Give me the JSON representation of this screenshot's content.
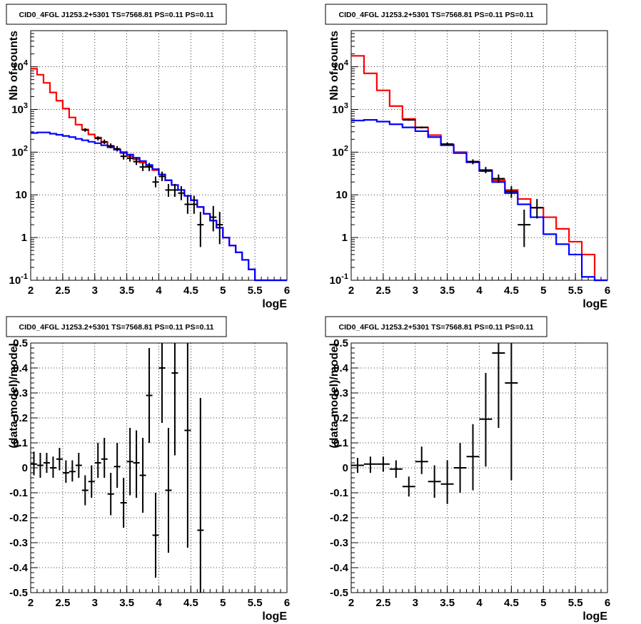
{
  "chart_data": [
    {
      "type": "histogram",
      "title": "CID0_4FGL J1253.2+5301 TS=7568.81 PS=0.11 PS=0.11",
      "xlabel": "logE",
      "ylabel": "Nb of counts",
      "xlim": [
        2,
        6
      ],
      "ylim": [
        0.1,
        70000
      ],
      "yscale": "log",
      "grid": true,
      "xticks": [
        "2",
        "2.5",
        "3",
        "3.5",
        "4",
        "4.5",
        "5",
        "5.5",
        "6"
      ],
      "yticks": [
        {
          "value": 0.1,
          "label": "10",
          "exp": "-1"
        },
        {
          "value": 1,
          "label": "1",
          "exp": ""
        },
        {
          "value": 10,
          "label": "10",
          "exp": ""
        },
        {
          "value": 100,
          "label": "10",
          "exp": "2"
        },
        {
          "value": 1000,
          "label": "10",
          "exp": "3"
        },
        {
          "value": 10000,
          "label": "10",
          "exp": "4"
        }
      ],
      "bin_edges": [
        2.0,
        2.1,
        2.2,
        2.3,
        2.4,
        2.5,
        2.6,
        2.7,
        2.8,
        2.9,
        3.0,
        3.1,
        3.2,
        3.3,
        3.4,
        3.5,
        3.6,
        3.7,
        3.8,
        3.9,
        4.0,
        4.1,
        4.2,
        4.3,
        4.4,
        4.5,
        4.6,
        4.7,
        4.8,
        4.9,
        5.0,
        5.1,
        5.2,
        5.3,
        5.4,
        5.5,
        5.6,
        5.7,
        5.8,
        5.9,
        6.0
      ],
      "series": [
        {
          "color": "#ff0000",
          "values": [
            9000,
            6500,
            4200,
            2500,
            1600,
            1050,
            650,
            440,
            340,
            260,
            220,
            170,
            140,
            115,
            95,
            80,
            68,
            57,
            47,
            38,
            30,
            22,
            17,
            13,
            9.5,
            7.5,
            5.2,
            3.6,
            2.5,
            1.7,
            1.0,
            0.65,
            0.45,
            0.3,
            0.18,
            0.1,
            0.1,
            0.1,
            0.1,
            0.1
          ]
        },
        {
          "color": "#0000ff",
          "values": [
            280,
            290,
            290,
            270,
            255,
            240,
            225,
            205,
            190,
            175,
            162,
            145,
            130,
            115,
            100,
            88,
            74,
            62,
            50,
            40,
            30,
            22,
            17,
            13,
            9.5,
            7.5,
            5.2,
            3.6,
            2.5,
            1.7,
            1.0,
            0.65,
            0.45,
            0.3,
            0.18,
            0.1,
            0.1,
            0.1,
            0.1,
            0.1
          ]
        }
      ],
      "points": [
        {
          "x": 2.85,
          "y": 330,
          "lo": 300,
          "hi": 365
        },
        {
          "x": 3.05,
          "y": 210,
          "lo": 188,
          "hi": 235
        },
        {
          "x": 3.15,
          "y": 175,
          "lo": 155,
          "hi": 198
        },
        {
          "x": 3.25,
          "y": 140,
          "lo": 123,
          "hi": 160
        },
        {
          "x": 3.35,
          "y": 120,
          "lo": 104,
          "hi": 139
        },
        {
          "x": 3.45,
          "y": 80,
          "lo": 67,
          "hi": 95
        },
        {
          "x": 3.55,
          "y": 72,
          "lo": 60,
          "hi": 86
        },
        {
          "x": 3.65,
          "y": 60,
          "lo": 50,
          "hi": 73
        },
        {
          "x": 3.75,
          "y": 45,
          "lo": 36,
          "hi": 56
        },
        {
          "x": 3.85,
          "y": 45,
          "lo": 36,
          "hi": 56
        },
        {
          "x": 3.95,
          "y": 20,
          "lo": 15,
          "hi": 27
        },
        {
          "x": 4.05,
          "y": 27,
          "lo": 21,
          "hi": 35
        },
        {
          "x": 4.15,
          "y": 13,
          "lo": 9,
          "hi": 18
        },
        {
          "x": 4.25,
          "y": 13,
          "lo": 9,
          "hi": 18
        },
        {
          "x": 4.35,
          "y": 11,
          "lo": 7.5,
          "hi": 16
        },
        {
          "x": 4.45,
          "y": 6,
          "lo": 3.6,
          "hi": 9.5
        },
        {
          "x": 4.55,
          "y": 6,
          "lo": 3.6,
          "hi": 9.5
        },
        {
          "x": 4.65,
          "y": 2,
          "lo": 0.6,
          "hi": 4
        },
        {
          "x": 4.85,
          "y": 3,
          "lo": 1.4,
          "hi": 5.5
        },
        {
          "x": 4.95,
          "y": 2,
          "lo": 0.7,
          "hi": 4
        }
      ]
    },
    {
      "type": "histogram",
      "title": "CID0_4FGL J1253.2+5301 TS=7568.81 PS=0.11 PS=0.11",
      "xlabel": "logE",
      "ylabel": "Nb of counts",
      "xlim": [
        2,
        6
      ],
      "ylim": [
        0.1,
        70000
      ],
      "yscale": "log",
      "grid": true,
      "xticks": [
        "2",
        "2.5",
        "3",
        "3.5",
        "4",
        "4.5",
        "5",
        "5.5",
        "6"
      ],
      "yticks": [
        {
          "value": 0.1,
          "label": "10",
          "exp": "-1"
        },
        {
          "value": 1,
          "label": "1",
          "exp": ""
        },
        {
          "value": 10,
          "label": "10",
          "exp": ""
        },
        {
          "value": 100,
          "label": "10",
          "exp": "2"
        },
        {
          "value": 1000,
          "label": "10",
          "exp": "3"
        },
        {
          "value": 10000,
          "label": "10",
          "exp": "4"
        }
      ],
      "bin_edges": [
        2.0,
        2.2,
        2.4,
        2.6,
        2.8,
        3.0,
        3.2,
        3.4,
        3.6,
        3.8,
        4.0,
        4.2,
        4.4,
        4.6,
        4.8,
        5.0,
        5.2,
        5.4,
        5.6,
        5.8,
        6.0
      ],
      "series": [
        {
          "color": "#ff0000",
          "values": [
            18000,
            7000,
            2800,
            1200,
            600,
            380,
            250,
            150,
            100,
            60,
            38,
            22,
            13,
            8,
            5,
            3,
            1.6,
            0.8,
            0.4,
            0.1
          ]
        },
        {
          "color": "#0000ff",
          "values": [
            550,
            570,
            520,
            450,
            380,
            310,
            225,
            145,
            95,
            58,
            36,
            20,
            11,
            6,
            3,
            1.2,
            0.7,
            0.4,
            0.12,
            0.1
          ]
        }
      ],
      "points": [
        {
          "x": 2.9,
          "y": 570,
          "lo": 545,
          "hi": 600
        },
        {
          "x": 3.1,
          "y": 380,
          "lo": 360,
          "hi": 400
        },
        {
          "x": 3.5,
          "y": 155,
          "lo": 143,
          "hi": 168
        },
        {
          "x": 3.9,
          "y": 60,
          "lo": 52,
          "hi": 68
        },
        {
          "x": 4.1,
          "y": 38,
          "lo": 32,
          "hi": 45
        },
        {
          "x": 4.3,
          "y": 24,
          "lo": 19,
          "hi": 30
        },
        {
          "x": 4.5,
          "y": 12,
          "lo": 8.5,
          "hi": 16
        },
        {
          "x": 4.7,
          "y": 2,
          "lo": 0.6,
          "hi": 4.5
        },
        {
          "x": 4.9,
          "y": 5,
          "lo": 2.8,
          "hi": 8
        }
      ]
    },
    {
      "type": "scatter",
      "title": "CID0_4FGL J1253.2+5301 TS=7568.81 PS=0.11 PS=0.11",
      "xlabel": "logE",
      "ylabel": "(data-model)/model",
      "xlim": [
        2,
        6
      ],
      "ylim": [
        -0.5,
        0.5
      ],
      "yscale": "linear",
      "grid": true,
      "xticks": [
        "2",
        "2.5",
        "3",
        "3.5",
        "4",
        "4.5",
        "5",
        "5.5",
        "6"
      ],
      "yticks": [
        "-0.5",
        "-0.4",
        "-0.3",
        "-0.2",
        "-0.1",
        "0",
        "0.1",
        "0.2",
        "0.3",
        "0.4",
        "0.5"
      ],
      "bin_width": 0.1,
      "points": [
        {
          "x": 2.05,
          "y": 0.015,
          "lo": -0.03,
          "hi": 0.065
        },
        {
          "x": 2.15,
          "y": 0.01,
          "lo": -0.04,
          "hi": 0.06
        },
        {
          "x": 2.25,
          "y": 0.02,
          "lo": -0.02,
          "hi": 0.06
        },
        {
          "x": 2.35,
          "y": 0.0,
          "lo": -0.04,
          "hi": 0.045
        },
        {
          "x": 2.45,
          "y": 0.035,
          "lo": -0.01,
          "hi": 0.08
        },
        {
          "x": 2.55,
          "y": -0.02,
          "lo": -0.06,
          "hi": 0.03
        },
        {
          "x": 2.65,
          "y": -0.015,
          "lo": -0.055,
          "hi": 0.03
        },
        {
          "x": 2.75,
          "y": 0.01,
          "lo": -0.04,
          "hi": 0.06
        },
        {
          "x": 2.85,
          "y": -0.09,
          "lo": -0.15,
          "hi": -0.03
        },
        {
          "x": 2.95,
          "y": -0.055,
          "lo": -0.12,
          "hi": 0.01
        },
        {
          "x": 3.05,
          "y": 0.02,
          "lo": -0.04,
          "hi": 0.1
        },
        {
          "x": 3.15,
          "y": 0.035,
          "lo": -0.04,
          "hi": 0.12
        },
        {
          "x": 3.25,
          "y": -0.105,
          "lo": -0.19,
          "hi": -0.02
        },
        {
          "x": 3.35,
          "y": 0.005,
          "lo": -0.08,
          "hi": 0.1
        },
        {
          "x": 3.45,
          "y": -0.14,
          "lo": -0.24,
          "hi": -0.04
        },
        {
          "x": 3.55,
          "y": 0.025,
          "lo": -0.11,
          "hi": 0.16
        },
        {
          "x": 3.65,
          "y": 0.02,
          "lo": -0.12,
          "hi": 0.15
        },
        {
          "x": 3.75,
          "y": -0.03,
          "lo": -0.18,
          "hi": 0.12
        },
        {
          "x": 3.85,
          "y": 0.29,
          "lo": 0.1,
          "hi": 0.48
        },
        {
          "x": 3.95,
          "y": -0.27,
          "lo": -0.44,
          "hi": -0.1
        },
        {
          "x": 4.05,
          "y": 0.4,
          "lo": 0.18,
          "hi": 0.5
        },
        {
          "x": 4.15,
          "y": -0.09,
          "lo": -0.34,
          "hi": 0.16
        },
        {
          "x": 4.25,
          "y": 0.38,
          "lo": 0.05,
          "hi": 0.5
        },
        {
          "x": 4.45,
          "y": 0.15,
          "lo": -0.32,
          "hi": 0.5
        },
        {
          "x": 4.65,
          "y": -0.25,
          "lo": -0.5,
          "hi": 0.28
        }
      ]
    },
    {
      "type": "scatter",
      "title": "CID0_4FGL J1253.2+5301 TS=7568.81 PS=0.11 PS=0.11",
      "xlabel": "logE",
      "ylabel": "(data-model)/model",
      "xlim": [
        2,
        6
      ],
      "ylim": [
        -0.5,
        0.5
      ],
      "yscale": "linear",
      "grid": true,
      "xticks": [
        "2",
        "2.5",
        "3",
        "3.5",
        "4",
        "4.5",
        "5",
        "5.5",
        "6"
      ],
      "yticks": [
        "-0.5",
        "-0.4",
        "-0.3",
        "-0.2",
        "-0.1",
        "0",
        "0.1",
        "0.2",
        "0.3",
        "0.4",
        "0.5"
      ],
      "bin_width": 0.2,
      "points": [
        {
          "x": 2.1,
          "y": 0.01,
          "lo": -0.02,
          "hi": 0.04
        },
        {
          "x": 2.3,
          "y": 0.015,
          "lo": -0.02,
          "hi": 0.045
        },
        {
          "x": 2.5,
          "y": 0.015,
          "lo": -0.015,
          "hi": 0.045
        },
        {
          "x": 2.7,
          "y": -0.005,
          "lo": -0.04,
          "hi": 0.03
        },
        {
          "x": 2.9,
          "y": -0.075,
          "lo": -0.115,
          "hi": -0.035
        },
        {
          "x": 3.1,
          "y": 0.025,
          "lo": -0.025,
          "hi": 0.085
        },
        {
          "x": 3.3,
          "y": -0.055,
          "lo": -0.12,
          "hi": 0.01
        },
        {
          "x": 3.5,
          "y": -0.065,
          "lo": -0.145,
          "hi": 0.03
        },
        {
          "x": 3.7,
          "y": 0.0,
          "lo": -0.1,
          "hi": 0.1
        },
        {
          "x": 3.9,
          "y": 0.045,
          "lo": -0.09,
          "hi": 0.175
        },
        {
          "x": 4.1,
          "y": 0.195,
          "lo": 0.005,
          "hi": 0.38
        },
        {
          "x": 4.3,
          "y": 0.46,
          "lo": 0.16,
          "hi": 0.5
        },
        {
          "x": 4.5,
          "y": 0.34,
          "lo": -0.05,
          "hi": 0.5
        }
      ]
    }
  ]
}
